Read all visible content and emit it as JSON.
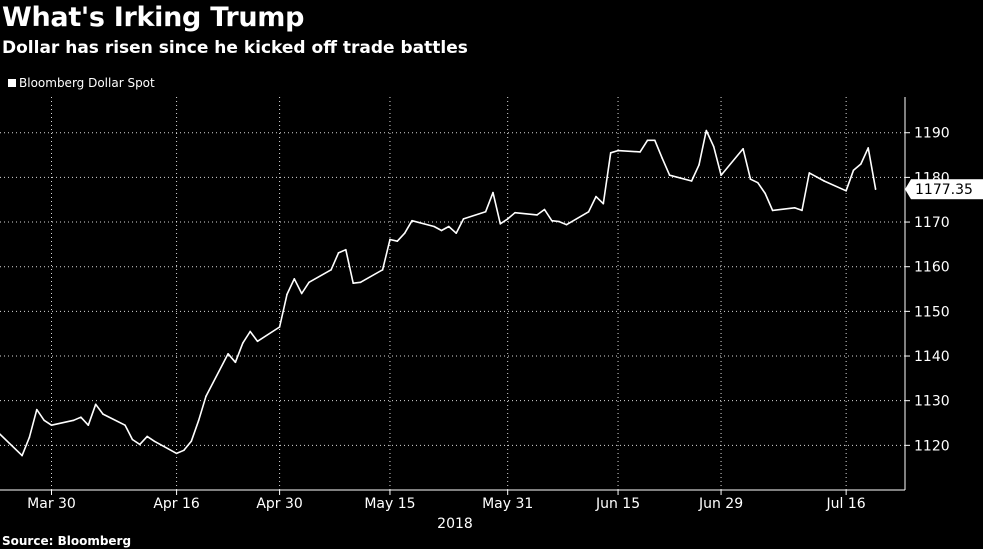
{
  "header": {
    "title": "What's Irking Trump",
    "subtitle": "Dollar has risen since he kicked off trade battles"
  },
  "legend": {
    "series_label": "Bloomberg Dollar Spot"
  },
  "footer": {
    "source": "Source: Bloomberg"
  },
  "colors": {
    "background": "#000000",
    "line": "#ffffff",
    "grid": "#ffffff",
    "text": "#ffffff"
  },
  "chart_data": {
    "type": "line",
    "title": "What's Irking Trump",
    "subtitle": "Dollar has risen since he kicked off trade battles",
    "xlabel": "2018",
    "ylabel": "",
    "ylim": [
      1110,
      1198
    ],
    "xlim": [
      "2018-03-23",
      "2018-07-24"
    ],
    "grid": true,
    "grid_style": "dotted",
    "legend_placement": "top-left",
    "y_axis_side": "right",
    "y_ticks": [
      1120,
      1130,
      1140,
      1150,
      1160,
      1170,
      1180,
      1190
    ],
    "x_tick_labels": [
      "Mar 30",
      "Apr 16",
      "Apr 30",
      "May 15",
      "May 31",
      "Jun 15",
      "Jun 29",
      "Jul 16"
    ],
    "x_tick_dates": [
      "2018-03-30",
      "2018-04-16",
      "2018-04-30",
      "2018-05-15",
      "2018-05-31",
      "2018-06-15",
      "2018-06-29",
      "2018-07-16"
    ],
    "last_value_label": "1177.35",
    "series": [
      {
        "name": "Bloomberg Dollar Spot",
        "x": [
          "2018-03-23",
          "2018-03-26",
          "2018-03-27",
          "2018-03-28",
          "2018-03-29",
          "2018-03-30",
          "2018-04-02",
          "2018-04-03",
          "2018-04-04",
          "2018-04-05",
          "2018-04-06",
          "2018-04-09",
          "2018-04-10",
          "2018-04-11",
          "2018-04-12",
          "2018-04-13",
          "2018-04-16",
          "2018-04-17",
          "2018-04-18",
          "2018-04-19",
          "2018-04-20",
          "2018-04-23",
          "2018-04-24",
          "2018-04-25",
          "2018-04-26",
          "2018-04-27",
          "2018-04-30",
          "2018-05-01",
          "2018-05-02",
          "2018-05-03",
          "2018-05-04",
          "2018-05-07",
          "2018-05-08",
          "2018-05-09",
          "2018-05-10",
          "2018-05-11",
          "2018-05-14",
          "2018-05-15",
          "2018-05-16",
          "2018-05-17",
          "2018-05-18",
          "2018-05-21",
          "2018-05-22",
          "2018-05-23",
          "2018-05-24",
          "2018-05-25",
          "2018-05-28",
          "2018-05-29",
          "2018-05-30",
          "2018-05-31",
          "2018-06-01",
          "2018-06-04",
          "2018-06-05",
          "2018-06-06",
          "2018-06-07",
          "2018-06-08",
          "2018-06-11",
          "2018-06-12",
          "2018-06-13",
          "2018-06-14",
          "2018-06-15",
          "2018-06-18",
          "2018-06-19",
          "2018-06-20",
          "2018-06-21",
          "2018-06-22",
          "2018-06-25",
          "2018-06-26",
          "2018-06-27",
          "2018-06-28",
          "2018-06-29",
          "2018-07-02",
          "2018-07-03",
          "2018-07-04",
          "2018-07-05",
          "2018-07-06",
          "2018-07-09",
          "2018-07-10",
          "2018-07-11",
          "2018-07-12",
          "2018-07-13",
          "2018-07-16",
          "2018-07-17",
          "2018-07-18",
          "2018-07-19",
          "2018-07-20"
        ],
        "values": [
          1122.5,
          1117.7,
          1121.8,
          1128.0,
          1125.6,
          1124.5,
          1125.6,
          1126.3,
          1124.5,
          1129.2,
          1127.0,
          1124.5,
          1121.3,
          1120.2,
          1122.0,
          1120.9,
          1118.2,
          1118.9,
          1120.9,
          1125.6,
          1131.0,
          1140.5,
          1138.6,
          1142.9,
          1145.5,
          1143.3,
          1146.5,
          1153.8,
          1157.3,
          1154.0,
          1156.5,
          1159.3,
          1163.1,
          1163.8,
          1156.3,
          1156.5,
          1159.3,
          1166.1,
          1165.7,
          1167.5,
          1170.3,
          1169.0,
          1168.1,
          1169.0,
          1167.5,
          1170.7,
          1172.3,
          1176.6,
          1169.6,
          1170.7,
          1172.1,
          1171.6,
          1172.8,
          1170.3,
          1170.1,
          1169.4,
          1172.3,
          1175.7,
          1174.1,
          1185.5,
          1186.0,
          1185.7,
          1188.3,
          1188.3,
          1184.3,
          1180.5,
          1179.2,
          1182.8,
          1190.5,
          1186.9,
          1180.5,
          1186.4,
          1179.6,
          1178.8,
          1176.4,
          1172.6,
          1173.2,
          1172.6,
          1181.0,
          1180.1,
          1179.2,
          1177.0,
          1181.6,
          1183.0,
          1186.6,
          1177.35
        ]
      }
    ]
  }
}
